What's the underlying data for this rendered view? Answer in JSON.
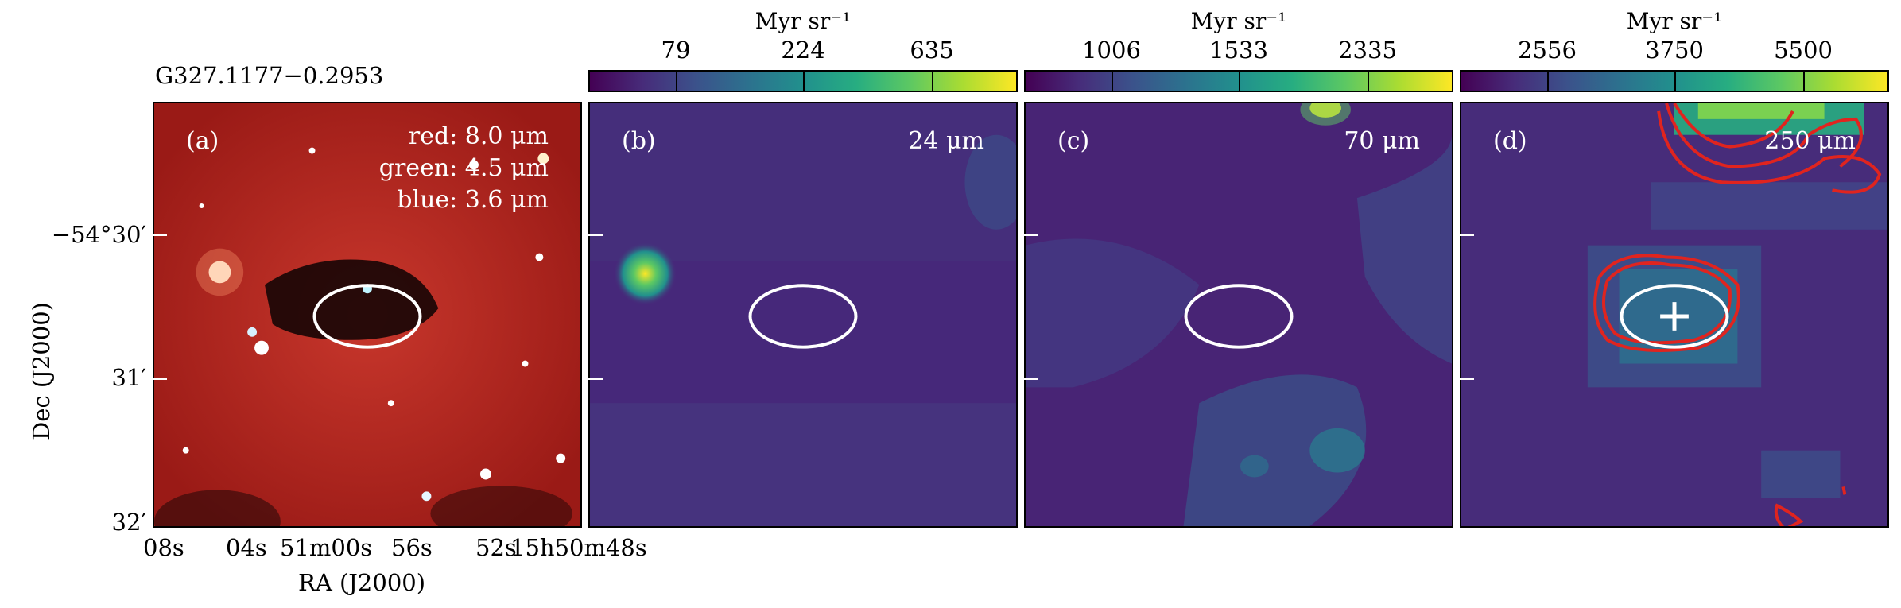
{
  "figure": {
    "source_name": "G327.1177−0.2953",
    "y_axis_label": "Dec (J2000)",
    "x_axis_label": "RA (J2000)",
    "dec_ticks": [
      "−54°30′",
      "31′",
      "32′"
    ],
    "ra_ticks": [
      "08s",
      "04s",
      "51m00s",
      "56s",
      "52s",
      "15h50m48s"
    ]
  },
  "panels": [
    {
      "id": "a",
      "label": "(a)",
      "lines": [
        "red: 8.0 μm",
        "green: 4.5 μm",
        "blue: 3.6 μm"
      ],
      "background": "#b01e18"
    },
    {
      "id": "b",
      "label": "(b)",
      "wavelength": "24 μm",
      "colorbar": {
        "unit": "Myr sr⁻¹",
        "ticks": [
          "79",
          "224",
          "635"
        ]
      }
    },
    {
      "id": "c",
      "label": "(c)",
      "wavelength": "70 μm",
      "colorbar": {
        "unit": "Myr sr⁻¹",
        "ticks": [
          "1006",
          "1533",
          "2335"
        ]
      }
    },
    {
      "id": "d",
      "label": "(d)",
      "wavelength": "250 μm",
      "colorbar": {
        "unit": "Myr sr⁻¹",
        "ticks": [
          "2556",
          "3750",
          "5500"
        ]
      }
    }
  ],
  "colors": {
    "viridis_low": "#440154",
    "viridis_mid": "#21908d",
    "viridis_high": "#fde725",
    "ellipse": "#ffffff",
    "contour": "#e0241f"
  }
}
